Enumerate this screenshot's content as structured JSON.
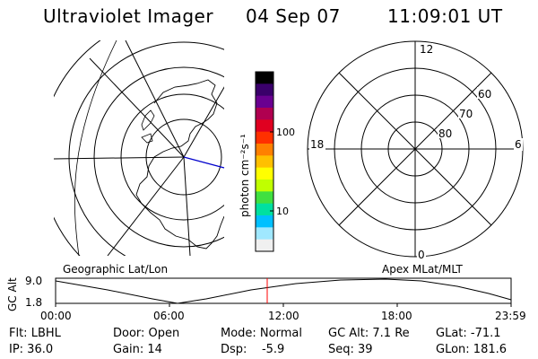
{
  "header": {
    "instrument": "Ultraviolet Imager",
    "date": "04 Sep 07",
    "time": "11:09:01 UT"
  },
  "colorbar": {
    "unit_label": "photon cm⁻²s⁻¹",
    "tick_labels": [
      "100",
      "10"
    ],
    "colors": [
      "#000000",
      "#3a006a",
      "#6a0090",
      "#b00050",
      "#e00020",
      "#ff3000",
      "#ff8000",
      "#ffc000",
      "#ffff00",
      "#c0ff00",
      "#40e040",
      "#00e0a0",
      "#00c0ff",
      "#a0e8ff",
      "#f0f0f0"
    ]
  },
  "geo_panel": {
    "label": "Geographic Lat/Lon"
  },
  "polar_panel": {
    "label": "Apex MLat/MLT",
    "mlt_labels": {
      "top": "12",
      "bottom": "0",
      "left": "18",
      "right": "6"
    },
    "mlat_labels": [
      "60",
      "70",
      "80"
    ]
  },
  "altitude_plot": {
    "ylabel": "GC Alt",
    "ytick_labels": [
      "9.0",
      "1.8"
    ],
    "xtick_labels": [
      "00:00",
      "06:00",
      "12:00",
      "18:00",
      "23:59"
    ],
    "marker_color": "#ff0000"
  },
  "status": {
    "flt": "Flt: LBHL",
    "ip": "IP: 36.0",
    "door": "Door: Open",
    "gain": "Gain: 14",
    "mode": "Mode: Normal",
    "dsp": "Dsp:    -5.9",
    "gc_alt": "GC Alt: 7.1 Re",
    "seq": "Seq: 39",
    "glat": "GLat: -71.1",
    "glon": "GLon: 181.6"
  }
}
